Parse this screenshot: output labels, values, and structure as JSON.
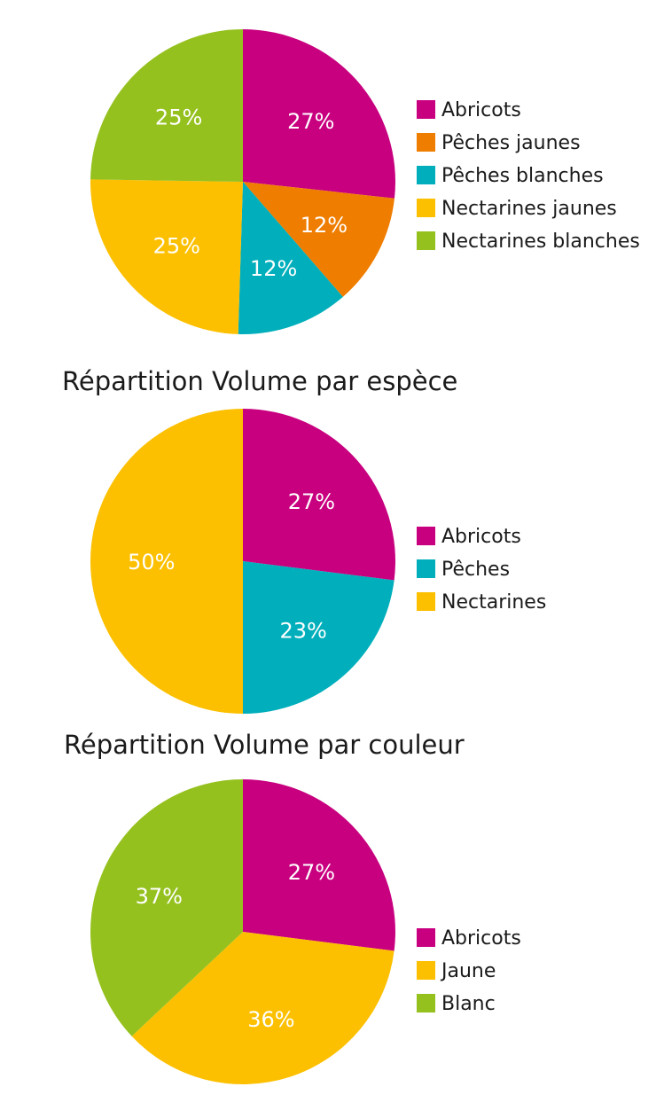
{
  "chart_data": [
    {
      "type": "pie",
      "title": "",
      "start_angle_deg": 0,
      "direction": "clockwise",
      "slices": [
        {
          "label": "Abricots",
          "value": 27,
          "display": "27%",
          "color": "#c8007f"
        },
        {
          "label": "Pêches jaunes",
          "value": 12,
          "display": "12%",
          "color": "#ef7d00"
        },
        {
          "label": "Pêches blanches",
          "value": 12,
          "display": "12%",
          "color": "#00afbb"
        },
        {
          "label": "Nectarines jaunes",
          "value": 25,
          "display": "25%",
          "color": "#fcc000"
        },
        {
          "label": "Nectarines blanches",
          "value": 25,
          "display": "25%",
          "color": "#95c11f"
        }
      ],
      "legend_position": "right"
    },
    {
      "type": "pie",
      "title": "Répartition Volume par espèce",
      "start_angle_deg": 0,
      "direction": "clockwise",
      "slices": [
        {
          "label": "Abricots",
          "value": 27,
          "display": "27%",
          "color": "#c8007f"
        },
        {
          "label": "Pêches",
          "value": 23,
          "display": "23%",
          "color": "#00afbb"
        },
        {
          "label": "Nectarines",
          "value": 50,
          "display": "50%",
          "color": "#fcc000"
        }
      ],
      "legend_position": "right"
    },
    {
      "type": "pie",
      "title": "Répartition Volume par couleur",
      "start_angle_deg": 0,
      "direction": "clockwise",
      "slices": [
        {
          "label": "Abricots",
          "value": 27,
          "display": "27%",
          "color": "#c8007f"
        },
        {
          "label": "Jaune",
          "value": 36,
          "display": "36%",
          "color": "#fcc000"
        },
        {
          "label": "Blanc",
          "value": 37,
          "display": "37%",
          "color": "#95c11f"
        }
      ],
      "legend_position": "right"
    }
  ]
}
